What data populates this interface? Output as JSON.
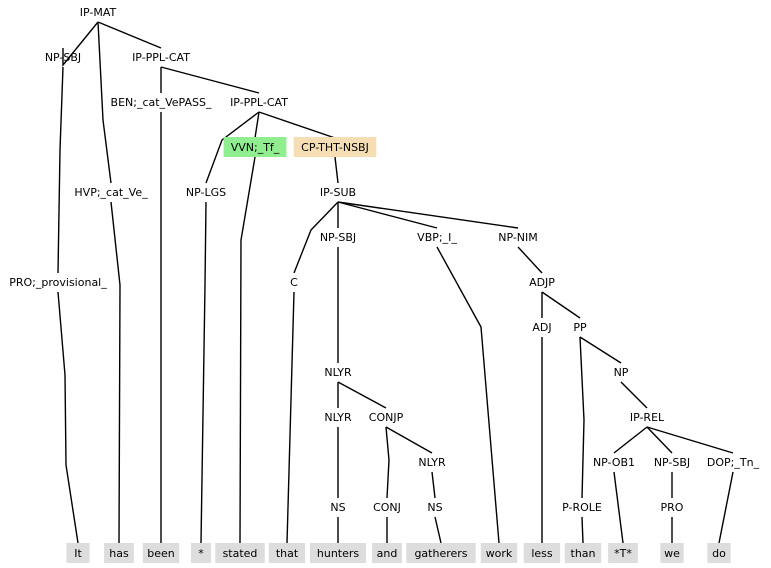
{
  "colors": {
    "edge": "#000000",
    "token_box": "#dddddd",
    "highlight_green": "#90ee90",
    "highlight_orange": "#f5deb3"
  },
  "nodes": [
    {
      "id": "n0",
      "label": "IP-MAT"
    },
    {
      "id": "n1",
      "label": "NP-SBJ"
    },
    {
      "id": "n2",
      "label": "IP-PPL-CAT"
    },
    {
      "id": "n3",
      "label": "BEN;_cat_VePASS_"
    },
    {
      "id": "n4",
      "label": "IP-PPL-CAT"
    },
    {
      "id": "n5",
      "label": "VVN;_Tf_",
      "highlight": "green"
    },
    {
      "id": "n6",
      "label": "CP-THT-NSBJ",
      "highlight": "orange"
    },
    {
      "id": "n7",
      "label": "HVP;_cat_Ve_"
    },
    {
      "id": "n8",
      "label": "NP-LGS"
    },
    {
      "id": "n9",
      "label": "IP-SUB"
    },
    {
      "id": "n10",
      "label": "NP-SBJ"
    },
    {
      "id": "n11",
      "label": "VBP;_I_"
    },
    {
      "id": "n12",
      "label": "NP-NIM"
    },
    {
      "id": "n13",
      "label": "PRO;_provisional_"
    },
    {
      "id": "n14",
      "label": "C"
    },
    {
      "id": "n15",
      "label": "ADJP"
    },
    {
      "id": "n16",
      "label": "ADJ"
    },
    {
      "id": "n17",
      "label": "PP"
    },
    {
      "id": "n18",
      "label": "NLYR"
    },
    {
      "id": "n19",
      "label": "NP"
    },
    {
      "id": "n20",
      "label": "NLYR"
    },
    {
      "id": "n21",
      "label": "CONJP"
    },
    {
      "id": "n22",
      "label": "IP-REL"
    },
    {
      "id": "n23",
      "label": "NLYR"
    },
    {
      "id": "n24",
      "label": "NP-OB1"
    },
    {
      "id": "n25",
      "label": "NP-SBJ"
    },
    {
      "id": "n26",
      "label": "DOP;_Tn_"
    },
    {
      "id": "n27",
      "label": "NS"
    },
    {
      "id": "n28",
      "label": "CONJ"
    },
    {
      "id": "n29",
      "label": "NS"
    },
    {
      "id": "n30",
      "label": "P-ROLE"
    },
    {
      "id": "n31",
      "label": "PRO"
    }
  ],
  "tokens": [
    {
      "id": "t0",
      "text": "It"
    },
    {
      "id": "t1",
      "text": "has"
    },
    {
      "id": "t2",
      "text": "been"
    },
    {
      "id": "t3",
      "text": "*"
    },
    {
      "id": "t4",
      "text": "stated"
    },
    {
      "id": "t5",
      "text": "that"
    },
    {
      "id": "t6",
      "text": "hunters"
    },
    {
      "id": "t7",
      "text": "and"
    },
    {
      "id": "t8",
      "text": "gatherers"
    },
    {
      "id": "t9",
      "text": "work"
    },
    {
      "id": "t10",
      "text": "less"
    },
    {
      "id": "t11",
      "text": "than"
    },
    {
      "id": "t12",
      "text": "*T*"
    },
    {
      "id": "t13",
      "text": "we"
    },
    {
      "id": "t14",
      "text": "do"
    }
  ]
}
